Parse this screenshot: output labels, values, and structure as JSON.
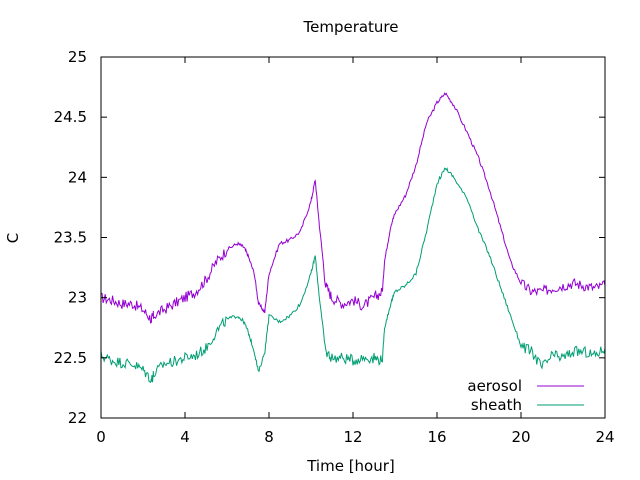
{
  "chart_data": {
    "type": "line",
    "title": "Temperature",
    "xlabel": "Time [hour]",
    "ylabel": "C",
    "xlim": [
      0,
      24
    ],
    "ylim": [
      22,
      25
    ],
    "xticks": [
      0,
      4,
      8,
      12,
      16,
      20,
      24
    ],
    "xtick_labels": [
      "0",
      "4",
      "8",
      "12",
      "16",
      "20",
      "24"
    ],
    "yticks": [
      22,
      22.5,
      23,
      23.5,
      24,
      24.5,
      25
    ],
    "ytick_labels": [
      "22",
      "22.5",
      "23",
      "23.5",
      "24",
      "24.5",
      "25"
    ],
    "grid": false,
    "legend_position": "bottom-right",
    "series": [
      {
        "name": "aerosol",
        "color": "#9400d3",
        "x": [
          0,
          0.5,
          1,
          1.5,
          2,
          2.4,
          2.5,
          3,
          3.5,
          4,
          4.5,
          5,
          5.5,
          6,
          6.5,
          6.8,
          7,
          7.3,
          7.5,
          7.8,
          8,
          8.5,
          9,
          9.5,
          10,
          10.2,
          10.4,
          10.7,
          11,
          11.5,
          12,
          12.5,
          13,
          13.4,
          13.5,
          13.8,
          14,
          14.5,
          15,
          15.5,
          16,
          16.4,
          16.8,
          17.5,
          18,
          18.5,
          19,
          19.5,
          20,
          20.5,
          21,
          21.5,
          22,
          22.5,
          23,
          23.5,
          24
        ],
        "values": [
          23.0,
          22.98,
          22.95,
          22.95,
          22.9,
          22.82,
          22.85,
          22.9,
          22.95,
          23.0,
          23.05,
          23.15,
          23.3,
          23.4,
          23.45,
          23.42,
          23.35,
          23.2,
          22.95,
          22.88,
          23.2,
          23.45,
          23.48,
          23.55,
          23.8,
          23.98,
          23.6,
          23.1,
          23.0,
          22.95,
          22.98,
          22.93,
          23.0,
          23.05,
          23.3,
          23.6,
          23.7,
          23.85,
          24.1,
          24.45,
          24.62,
          24.7,
          24.6,
          24.35,
          24.15,
          23.9,
          23.6,
          23.3,
          23.12,
          23.05,
          23.05,
          23.08,
          23.1,
          23.12,
          23.1,
          23.08,
          23.1
        ]
      },
      {
        "name": "sheath",
        "color": "#009e73",
        "x": [
          0,
          0.5,
          1,
          1.5,
          2,
          2.4,
          2.5,
          3,
          3.5,
          4,
          4.5,
          5,
          5.5,
          6,
          6.5,
          6.8,
          7,
          7.3,
          7.5,
          7.8,
          8,
          8.5,
          9,
          9.5,
          10,
          10.2,
          10.4,
          10.7,
          11,
          11.5,
          12,
          12.5,
          13,
          13.4,
          13.5,
          13.8,
          14,
          14.5,
          15,
          15.5,
          16,
          16.4,
          16.8,
          17.5,
          18,
          18.5,
          19,
          19.5,
          20,
          20.5,
          21,
          21.5,
          22,
          22.5,
          23,
          23.5,
          24
        ],
        "values": [
          22.52,
          22.48,
          22.46,
          22.45,
          22.4,
          22.32,
          22.36,
          22.45,
          22.47,
          22.5,
          22.52,
          22.58,
          22.72,
          22.82,
          22.85,
          22.8,
          22.72,
          22.55,
          22.38,
          22.55,
          22.85,
          22.8,
          22.85,
          22.95,
          23.2,
          23.35,
          23.0,
          22.55,
          22.5,
          22.5,
          22.48,
          22.5,
          22.5,
          22.48,
          22.75,
          22.95,
          23.05,
          23.1,
          23.2,
          23.55,
          23.95,
          24.08,
          24.0,
          23.8,
          23.55,
          23.35,
          23.1,
          22.85,
          22.6,
          22.55,
          22.42,
          22.52,
          22.5,
          22.55,
          22.55,
          22.52,
          22.58
        ]
      }
    ]
  }
}
